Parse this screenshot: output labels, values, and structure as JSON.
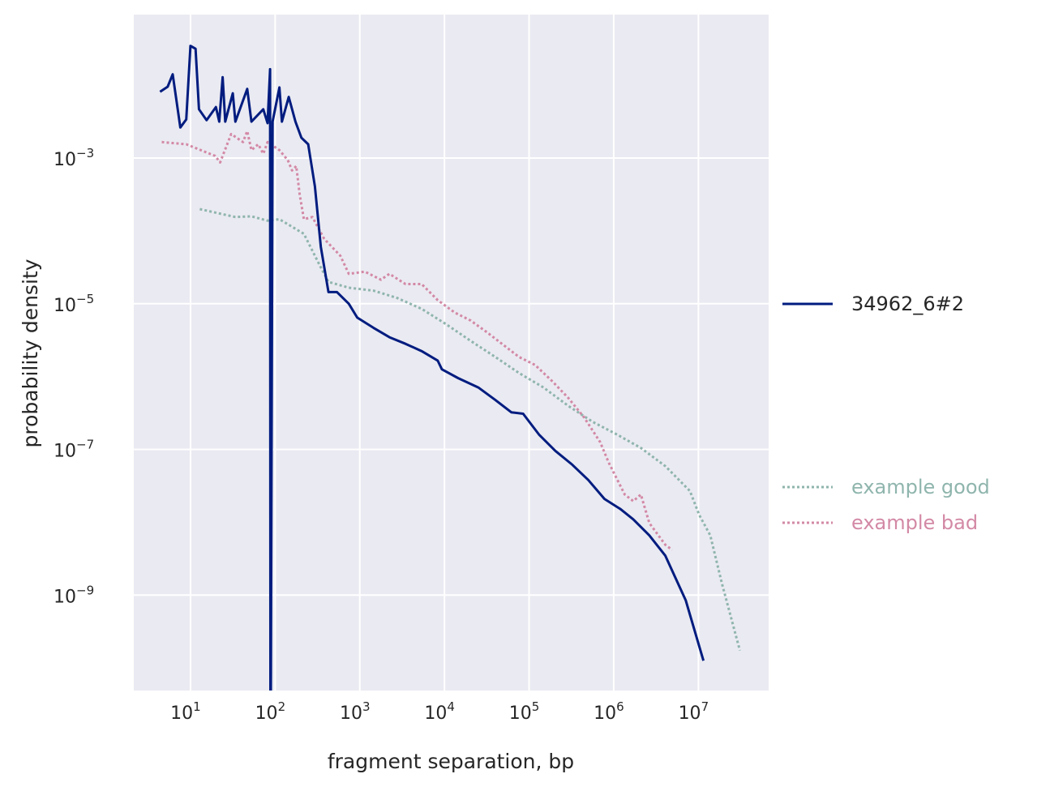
{
  "chart_data": {
    "type": "line",
    "title": "",
    "xlabel": "fragment separation, bp",
    "ylabel": "probability density",
    "xscale": "log",
    "yscale": "log",
    "xlim_log10": [
      0.33,
      7.83
    ],
    "ylim_log10": [
      -10.31,
      -1.03
    ],
    "xticks_log10": [
      1,
      2,
      3,
      4,
      5,
      6,
      7
    ],
    "yticks_log10": [
      -3,
      -5,
      -7,
      -9
    ],
    "tick_base": "10",
    "grid": true,
    "legend_placement": "right, outside",
    "series": [
      {
        "name": "34962_6#2",
        "color": "#001c7f",
        "style": "solid",
        "log10_x": [
          0.64,
          0.73,
          0.79,
          0.88,
          0.95,
          1.0,
          1.06,
          1.1,
          1.19,
          1.3,
          1.34,
          1.38,
          1.41,
          1.5,
          1.53,
          1.67,
          1.72,
          1.86,
          1.91,
          1.94,
          1.945,
          1.97,
          2.05,
          2.08,
          2.16,
          2.24,
          2.31,
          2.39,
          2.47,
          2.54,
          2.63,
          2.73,
          2.87,
          2.97,
          3.16,
          3.35,
          3.54,
          3.73,
          3.92,
          3.97,
          4.16,
          4.4,
          4.6,
          4.79,
          4.93,
          5.12,
          5.31,
          5.51,
          5.7,
          5.89,
          6.08,
          6.23,
          6.42,
          6.61,
          6.85,
          7.06
        ],
        "log10_y": [
          -2.09,
          -2.02,
          -1.85,
          -2.58,
          -2.47,
          -1.46,
          -1.5,
          -2.33,
          -2.48,
          -2.3,
          -2.5,
          -1.89,
          -2.5,
          -2.11,
          -2.5,
          -2.05,
          -2.5,
          -2.33,
          -2.52,
          -1.78,
          -12,
          -2.5,
          -2.03,
          -2.5,
          -2.16,
          -2.5,
          -2.72,
          -2.81,
          -3.39,
          -4.22,
          -4.84,
          -4.84,
          -5.0,
          -5.19,
          -5.33,
          -5.46,
          -5.55,
          -5.65,
          -5.78,
          -5.9,
          -6.02,
          -6.15,
          -6.32,
          -6.49,
          -6.51,
          -6.8,
          -7.02,
          -7.21,
          -7.42,
          -7.68,
          -7.82,
          -7.96,
          -8.18,
          -8.46,
          -9.07,
          -9.9
        ]
      },
      {
        "name": "example good",
        "color": "#8fb5ad",
        "style": "dotted",
        "log10_x": [
          1.11,
          1.53,
          1.72,
          1.91,
          2.05,
          2.34,
          2.53,
          2.63,
          2.87,
          3.16,
          3.44,
          3.73,
          4.02,
          4.31,
          4.6,
          4.88,
          5.17,
          5.46,
          5.75,
          6.03,
          6.32,
          6.61,
          6.9,
          7.01,
          7.14,
          7.28,
          7.49
        ],
        "log10_y": [
          -3.7,
          -3.81,
          -3.8,
          -3.86,
          -3.84,
          -4.04,
          -4.48,
          -4.7,
          -4.78,
          -4.82,
          -4.92,
          -5.07,
          -5.28,
          -5.51,
          -5.73,
          -5.95,
          -6.15,
          -6.4,
          -6.62,
          -6.79,
          -6.98,
          -7.23,
          -7.57,
          -7.9,
          -8.18,
          -8.85,
          -9.76
        ]
      },
      {
        "name": "example bad",
        "color": "#d389a5",
        "style": "dotted",
        "log10_x": [
          0.66,
          0.95,
          1.29,
          1.35,
          1.48,
          1.62,
          1.67,
          1.72,
          1.8,
          1.86,
          1.91,
          2.05,
          2.15,
          2.2,
          2.25,
          2.29,
          2.34,
          2.44,
          2.58,
          2.77,
          2.87,
          3.06,
          3.25,
          3.35,
          3.54,
          3.73,
          3.92,
          4.12,
          4.31,
          4.5,
          4.69,
          4.88,
          5.07,
          5.27,
          5.46,
          5.65,
          5.84,
          5.94,
          6.13,
          6.23,
          6.32,
          6.42,
          6.61,
          6.69
        ],
        "log10_y": [
          -2.78,
          -2.81,
          -2.97,
          -3.06,
          -2.67,
          -2.78,
          -2.63,
          -2.89,
          -2.81,
          -2.94,
          -2.78,
          -2.89,
          -3.03,
          -3.17,
          -3.11,
          -3.5,
          -3.84,
          -3.81,
          -4.11,
          -4.34,
          -4.59,
          -4.56,
          -4.67,
          -4.59,
          -4.73,
          -4.73,
          -4.95,
          -5.12,
          -5.23,
          -5.39,
          -5.56,
          -5.73,
          -5.84,
          -6.06,
          -6.29,
          -6.56,
          -6.9,
          -7.18,
          -7.62,
          -7.71,
          -7.62,
          -8.01,
          -8.31,
          -8.38
        ]
      }
    ]
  }
}
